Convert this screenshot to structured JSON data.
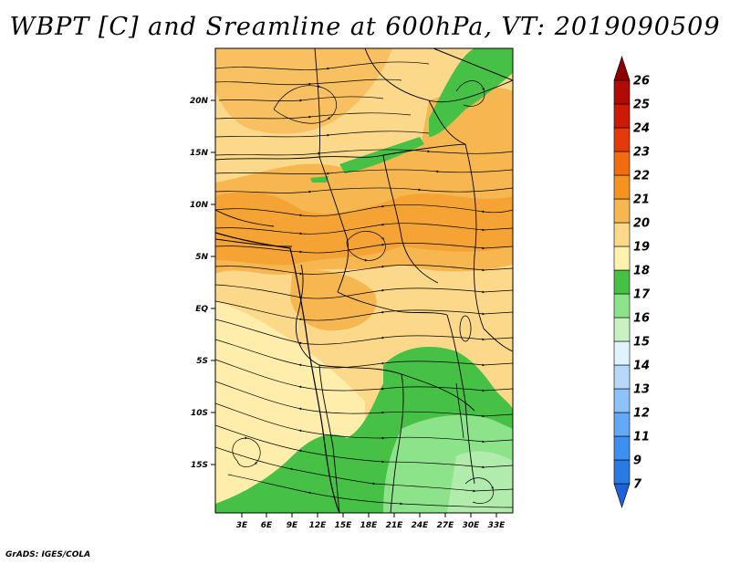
{
  "title": "WBPT [C] and Sreamline at 600hPa, VT: 2019090509",
  "credit": "GrADS: IGES/COLA",
  "map": {
    "lat_labels": [
      "20N",
      "15N",
      "10N",
      "5N",
      "EQ",
      "5S",
      "10S",
      "15S"
    ],
    "lon_labels": [
      "3E",
      "6E",
      "9E",
      "12E",
      "15E",
      "18E",
      "21E",
      "24E",
      "27E",
      "30E",
      "33E"
    ]
  },
  "colorbar": {
    "labels": [
      "7",
      "9",
      "11",
      "12",
      "13",
      "14",
      "15",
      "16",
      "17",
      "18",
      "19",
      "20",
      "21",
      "22",
      "23",
      "24",
      "25",
      "26"
    ],
    "colors": [
      "#1f61d6",
      "#2a7ae3",
      "#3d90ef",
      "#63a9f5",
      "#8dc3f8",
      "#b6d9fa",
      "#e0f2fc",
      "#c9f1c4",
      "#8de38a",
      "#47c046",
      "#fff1b0",
      "#fbd88a",
      "#f6b650",
      "#f4941f",
      "#f06c0f",
      "#e43a0a",
      "#cd1a05",
      "#b00a02",
      "#8c0000"
    ]
  }
}
